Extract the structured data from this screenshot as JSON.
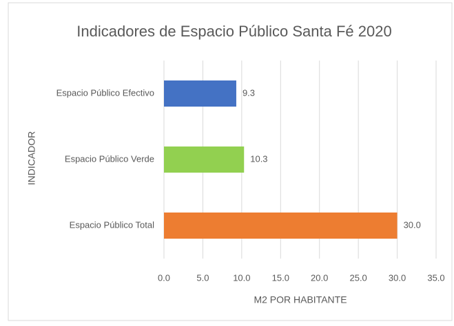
{
  "chart_data": {
    "type": "barh",
    "title": "Indicadores de Espacio Público Santa Fé 2020",
    "xlabel": "M2 POR HABITANTE",
    "ylabel": "INDICADOR",
    "categories": [
      "Espacio Público Efectivo",
      "Espacio Público Verde",
      "Espacio Público Total"
    ],
    "values": [
      9.3,
      10.3,
      30.0
    ],
    "value_labels": [
      "9.3",
      "10.3",
      "30.0"
    ],
    "colors": [
      "#4472c4",
      "#92d050",
      "#ed7d31"
    ],
    "xlim": [
      0,
      35
    ],
    "xticks": [
      {
        "value": 0,
        "label": "0.0"
      },
      {
        "value": 5,
        "label": "5.0"
      },
      {
        "value": 10,
        "label": "10.0"
      },
      {
        "value": 15,
        "label": "15.0"
      },
      {
        "value": 20,
        "label": "20.0"
      },
      {
        "value": 25,
        "label": "25.0"
      },
      {
        "value": 30,
        "label": "30.0"
      },
      {
        "value": 35,
        "label": "35.0"
      }
    ],
    "grid": true
  }
}
